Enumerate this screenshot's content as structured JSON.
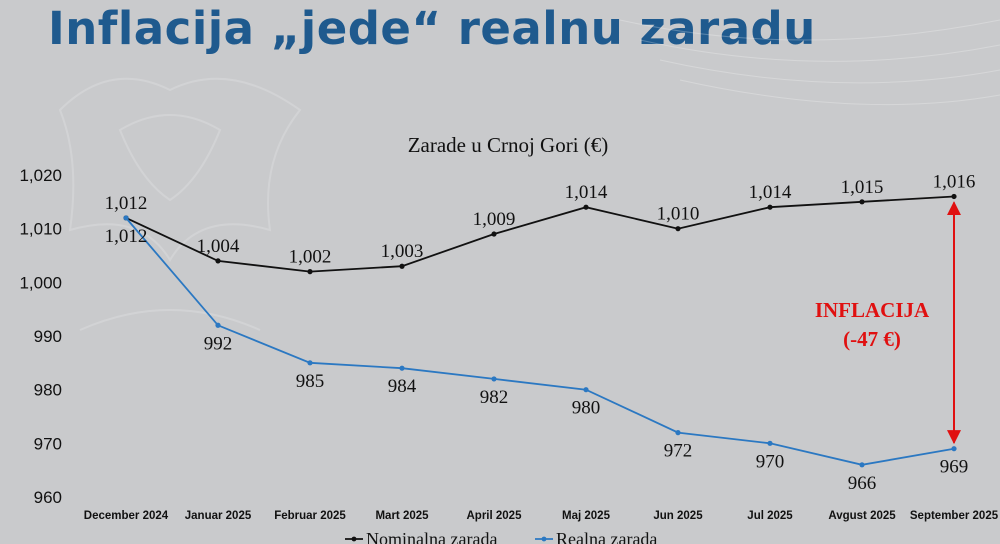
{
  "slide": {
    "title": "Inflacija „jede“ realnu zaradu"
  },
  "chart_data": {
    "type": "line",
    "title": "Zarade u Crnoj Gori (€)",
    "categories": [
      "December 2024",
      "Januar 2025",
      "Februar 2025",
      "Mart 2025",
      "April 2025",
      "Maj 2025",
      "Jun 2025",
      "Jul 2025",
      "Avgust 2025",
      "September 2025"
    ],
    "series": [
      {
        "name": "Nominalna zarada",
        "color": "#111111",
        "values": [
          1012,
          1004,
          1002,
          1003,
          1009,
          1014,
          1010,
          1014,
          1015,
          1016
        ],
        "labels": [
          "1,012",
          "1,004",
          "1,002",
          "1,003",
          "1,009",
          "1,014",
          "1,010",
          "1,014",
          "1,015",
          "1,016"
        ]
      },
      {
        "name": "Realna zarada",
        "color": "#2b78c2",
        "values": [
          1012,
          992,
          985,
          984,
          982,
          980,
          972,
          970,
          966,
          969
        ],
        "labels": [
          "1,012",
          "992",
          "985",
          "984",
          "982",
          "980",
          "972",
          "970",
          "966",
          "969"
        ]
      }
    ],
    "ylim": [
      960,
      1020
    ],
    "yticks": [
      960,
      970,
      980,
      990,
      1000,
      1010,
      1020
    ],
    "ytick_labels": [
      "960",
      "970",
      "980",
      "990",
      "1,000",
      "1,010",
      "1,020"
    ],
    "grid": false,
    "legend": "bottom",
    "annotation": {
      "lines": [
        "INFLACIJA",
        "(-47 €)"
      ],
      "color": "#e01010"
    }
  }
}
